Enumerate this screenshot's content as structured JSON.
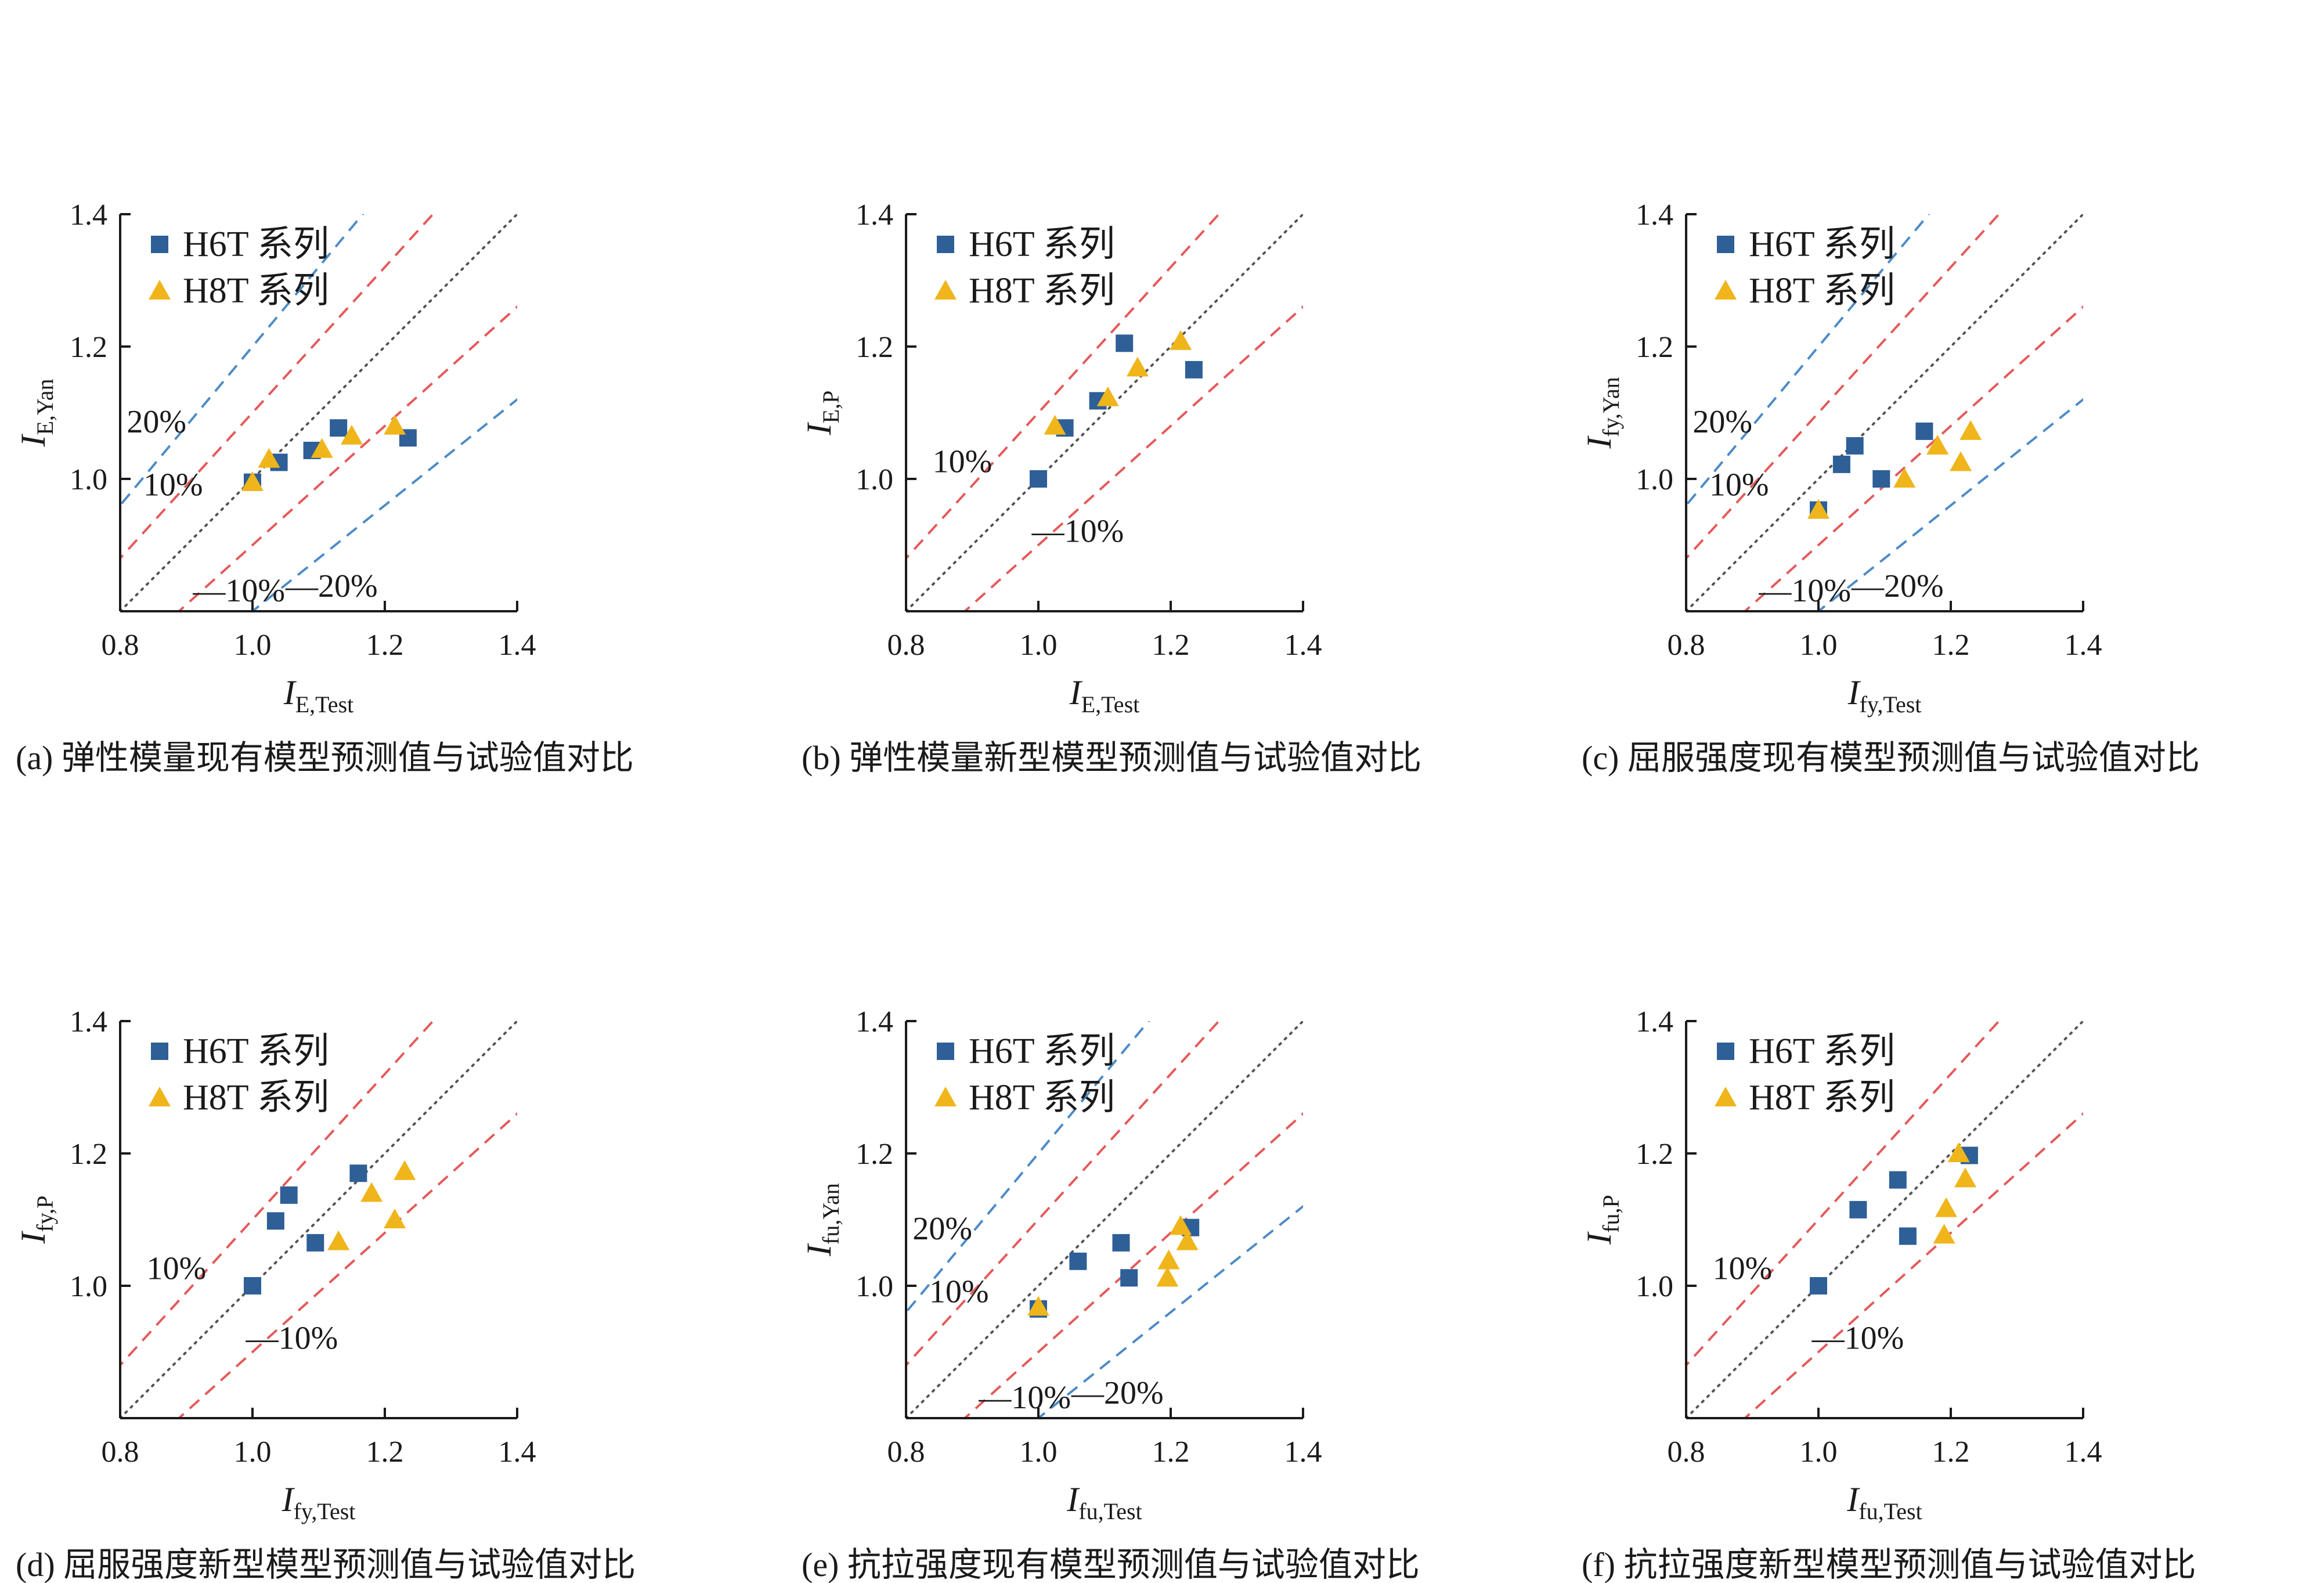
{
  "colors": {
    "h6t": "#2e5f97",
    "h8t": "#efb51b",
    "ref_10": "#e45a5a",
    "ref_20": "#4d8bc6",
    "diag": "#555555",
    "axis": "#1a1a1a"
  },
  "legend_labels": [
    "H6T 系列",
    "H8T 系列"
  ],
  "chart_data": [
    {
      "type": "scatter",
      "panel": "a",
      "caption": "(a)  弹性模量现有模型预测值与试验值对比",
      "xlabel": {
        "main": "I",
        "sub": "E,Test"
      },
      "ylabel": {
        "main": "I",
        "sub": "E,Yan"
      },
      "xlim": [
        0.8,
        1.4
      ],
      "ylim": [
        0.8,
        1.4
      ],
      "xticks": [
        "0.8",
        "1.0",
        "1.2",
        "1.4"
      ],
      "yticks": [
        "1.0",
        "1.2",
        "1.4"
      ],
      "reference_lines": [
        0.2,
        0.1,
        -0.1,
        -0.2
      ],
      "annotations": [
        "20%",
        "10%",
        "—10%",
        "—20%"
      ],
      "series": [
        {
          "name": "H6T 系列",
          "marker": "square",
          "x": [
            1.0,
            1.04,
            1.09,
            1.13,
            1.235
          ],
          "y": [
            0.995,
            1.025,
            1.043,
            1.077,
            1.062
          ]
        },
        {
          "name": "H8T 系列",
          "marker": "triangle",
          "x": [
            1.0,
            1.025,
            1.105,
            1.15,
            1.215
          ],
          "y": [
            0.995,
            1.03,
            1.045,
            1.065,
            1.08
          ]
        }
      ]
    },
    {
      "type": "scatter",
      "panel": "b",
      "caption": "(b)  弹性模量新型模型预测值与试验值对比",
      "xlabel": {
        "main": "I",
        "sub": "E,Test"
      },
      "ylabel": {
        "main": "I",
        "sub": "E,P"
      },
      "xlim": [
        0.8,
        1.4
      ],
      "ylim": [
        0.8,
        1.4
      ],
      "xticks": [
        "0.8",
        "1.0",
        "1.2",
        "1.4"
      ],
      "yticks": [
        "1.0",
        "1.2",
        "1.4"
      ],
      "reference_lines": [
        0.1,
        -0.1
      ],
      "annotations": [
        "10%",
        "—10%"
      ],
      "series": [
        {
          "name": "H6T 系列",
          "marker": "square",
          "x": [
            1.0,
            1.04,
            1.09,
            1.13,
            1.235
          ],
          "y": [
            1.0,
            1.077,
            1.118,
            1.205,
            1.165
          ]
        },
        {
          "name": "H8T 系列",
          "marker": "triangle",
          "x": [
            1.025,
            1.105,
            1.15,
            1.215
          ],
          "y": [
            1.08,
            1.123,
            1.168,
            1.208
          ]
        }
      ]
    },
    {
      "type": "scatter",
      "panel": "c",
      "caption": "(c)  屈服强度现有模型预测值与试验值对比",
      "xlabel": {
        "main": "I",
        "sub": "fy,Test"
      },
      "ylabel": {
        "main": "I",
        "sub": "fy,Yan"
      },
      "xlim": [
        0.8,
        1.4
      ],
      "ylim": [
        0.8,
        1.4
      ],
      "xticks": [
        "0.8",
        "1.0",
        "1.2",
        "1.4"
      ],
      "yticks": [
        "1.0",
        "1.2",
        "1.4"
      ],
      "reference_lines": [
        0.2,
        0.1,
        -0.1,
        -0.2
      ],
      "annotations": [
        "20%",
        "10%",
        "—10%",
        "—20%"
      ],
      "series": [
        {
          "name": "H6T 系列",
          "marker": "square",
          "x": [
            1.0,
            1.035,
            1.055,
            1.095,
            1.16
          ],
          "y": [
            0.953,
            1.022,
            1.05,
            1.0,
            1.072
          ]
        },
        {
          "name": "H8T 系列",
          "marker": "triangle",
          "x": [
            1.0,
            1.13,
            1.18,
            1.215,
            1.23
          ],
          "y": [
            0.953,
            1.0,
            1.05,
            1.025,
            1.072
          ]
        }
      ]
    },
    {
      "type": "scatter",
      "panel": "d",
      "caption": "(d)  屈服强度新型模型预测值与试验值对比",
      "xlabel": {
        "main": "I",
        "sub": "fy,Test"
      },
      "ylabel": {
        "main": "I",
        "sub": "fy,P"
      },
      "xlim": [
        0.8,
        1.4
      ],
      "ylim": [
        0.8,
        1.4
      ],
      "xticks": [
        "0.8",
        "1.0",
        "1.2",
        "1.4"
      ],
      "yticks": [
        "1.0",
        "1.2",
        "1.4"
      ],
      "reference_lines": [
        0.1,
        -0.1
      ],
      "annotations": [
        "10%",
        "—10%"
      ],
      "series": [
        {
          "name": "H6T 系列",
          "marker": "square",
          "x": [
            1.0,
            1.035,
            1.055,
            1.095,
            1.16
          ],
          "y": [
            1.0,
            1.098,
            1.137,
            1.065,
            1.17
          ]
        },
        {
          "name": "H8T 系列",
          "marker": "triangle",
          "x": [
            1.13,
            1.18,
            1.215,
            1.23
          ],
          "y": [
            1.067,
            1.14,
            1.1,
            1.173
          ]
        }
      ]
    },
    {
      "type": "scatter",
      "panel": "e",
      "caption": "(e)  抗拉强度现有模型预测值与试验值对比",
      "xlabel": {
        "main": "I",
        "sub": "fu,Test"
      },
      "ylabel": {
        "main": "I",
        "sub": "fu,Yan"
      },
      "xlim": [
        0.8,
        1.4
      ],
      "ylim": [
        0.8,
        1.4
      ],
      "xticks": [
        "0.8",
        "1.0",
        "1.2",
        "1.4"
      ],
      "yticks": [
        "1.0",
        "1.2",
        "1.4"
      ],
      "reference_lines": [
        0.2,
        0.1,
        -0.1,
        -0.2
      ],
      "annotations": [
        "20%",
        "10%",
        "—10%",
        "—20%"
      ],
      "series": [
        {
          "name": "H6T 系列",
          "marker": "square",
          "x": [
            1.0,
            1.06,
            1.125,
            1.137,
            1.23
          ],
          "y": [
            0.965,
            1.037,
            1.065,
            1.012,
            1.088
          ]
        },
        {
          "name": "H8T 系列",
          "marker": "triangle",
          "x": [
            1.0,
            1.195,
            1.197,
            1.215,
            1.225
          ],
          "y": [
            0.968,
            1.012,
            1.038,
            1.09,
            1.067
          ]
        }
      ]
    },
    {
      "type": "scatter",
      "panel": "f",
      "caption": "(f)  抗拉强度新型模型预测值与试验值对比",
      "xlabel": {
        "main": "I",
        "sub": "fu,Test"
      },
      "ylabel": {
        "main": "I",
        "sub": "fu,P"
      },
      "xlim": [
        0.8,
        1.4
      ],
      "ylim": [
        0.8,
        1.4
      ],
      "xticks": [
        "0.8",
        "1.0",
        "1.2",
        "1.4"
      ],
      "yticks": [
        "1.0",
        "1.2",
        "1.4"
      ],
      "reference_lines": [
        0.1,
        -0.1
      ],
      "annotations": [
        "10%",
        "—10%"
      ],
      "series": [
        {
          "name": "H6T 系列",
          "marker": "square",
          "x": [
            1.0,
            1.06,
            1.12,
            1.135,
            1.228
          ],
          "y": [
            1.0,
            1.115,
            1.16,
            1.075,
            1.197
          ]
        },
        {
          "name": "H8T 系列",
          "marker": "triangle",
          "x": [
            1.19,
            1.193,
            1.212,
            1.222
          ],
          "y": [
            1.077,
            1.117,
            1.2,
            1.162
          ]
        }
      ]
    }
  ]
}
